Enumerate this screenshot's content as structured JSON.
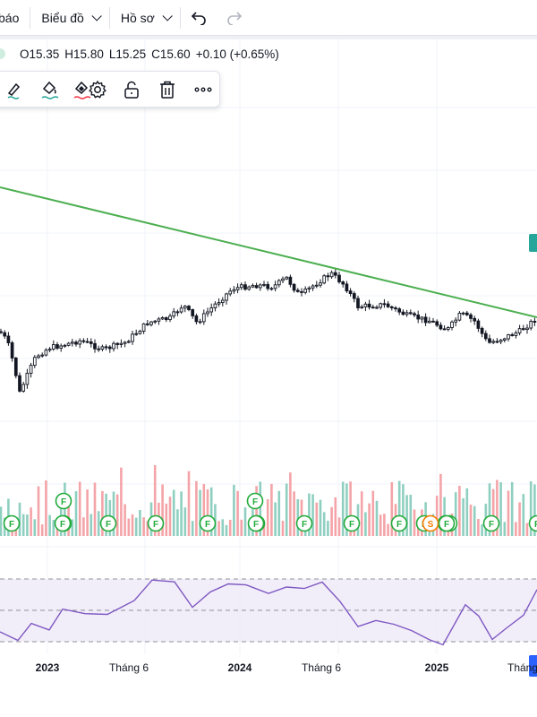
{
  "toolbar": {
    "alerts_label_partial": "báo",
    "chart_menu_label": "Biểu đồ",
    "profile_menu_label": "Hồ sơ",
    "undo_icon": "undo-icon",
    "redo_icon": "redo-icon"
  },
  "legend": {
    "open": "O15.35",
    "high": "H15.80",
    "low": "L15.25",
    "close": "C15.60",
    "change": "+0.10 (+0.65%)",
    "color_up": "#089981"
  },
  "drawing_toolbar": {
    "icons": [
      "brush-icon",
      "paint-bucket-icon",
      "text-color-icon",
      "gear-icon",
      "unlock-icon",
      "trash-icon",
      "more-icon"
    ]
  },
  "time_axis": {
    "labels": [
      {
        "text": "2023",
        "bold": true
      },
      {
        "text": "Tháng 6",
        "bold": false
      },
      {
        "text": "2024",
        "bold": true
      },
      {
        "text": "Tháng 6",
        "bold": false
      },
      {
        "text": "2025",
        "bold": true
      },
      {
        "text": "Tháng",
        "bold": false
      }
    ]
  },
  "chart_data": {
    "type": "candlestick",
    "last": {
      "open": 15.35,
      "high": 15.8,
      "low": 15.25,
      "close": 15.6
    },
    "colors": {
      "up": "#089981",
      "down": "#131722",
      "trendline": "#4caf50",
      "vol_up": "#8fcfc0",
      "vol_down": "#f4a4a8",
      "rsi_line": "#7e57c2",
      "rsi_band": "#ede7f6",
      "event_earnings": "#22ab3b",
      "event_split": "#f57c00"
    },
    "event_markers": [
      {
        "letter": "F"
      },
      {
        "letter": "F"
      },
      {
        "letter": "F"
      },
      {
        "letter": "F"
      },
      {
        "letter": "F"
      },
      {
        "letter": "F"
      },
      {
        "letter": "F"
      },
      {
        "letter": "F"
      },
      {
        "letter": "F"
      },
      {
        "letter": "F"
      },
      {
        "letter": "F"
      },
      {
        "letter": "F"
      },
      {
        "letter": "F"
      },
      {
        "letter": "F"
      },
      {
        "letter": "S"
      },
      {
        "letter": "F"
      },
      {
        "letter": "F"
      },
      {
        "letter": "F"
      },
      {
        "letter": "F"
      },
      {
        "letter": "F"
      }
    ]
  }
}
